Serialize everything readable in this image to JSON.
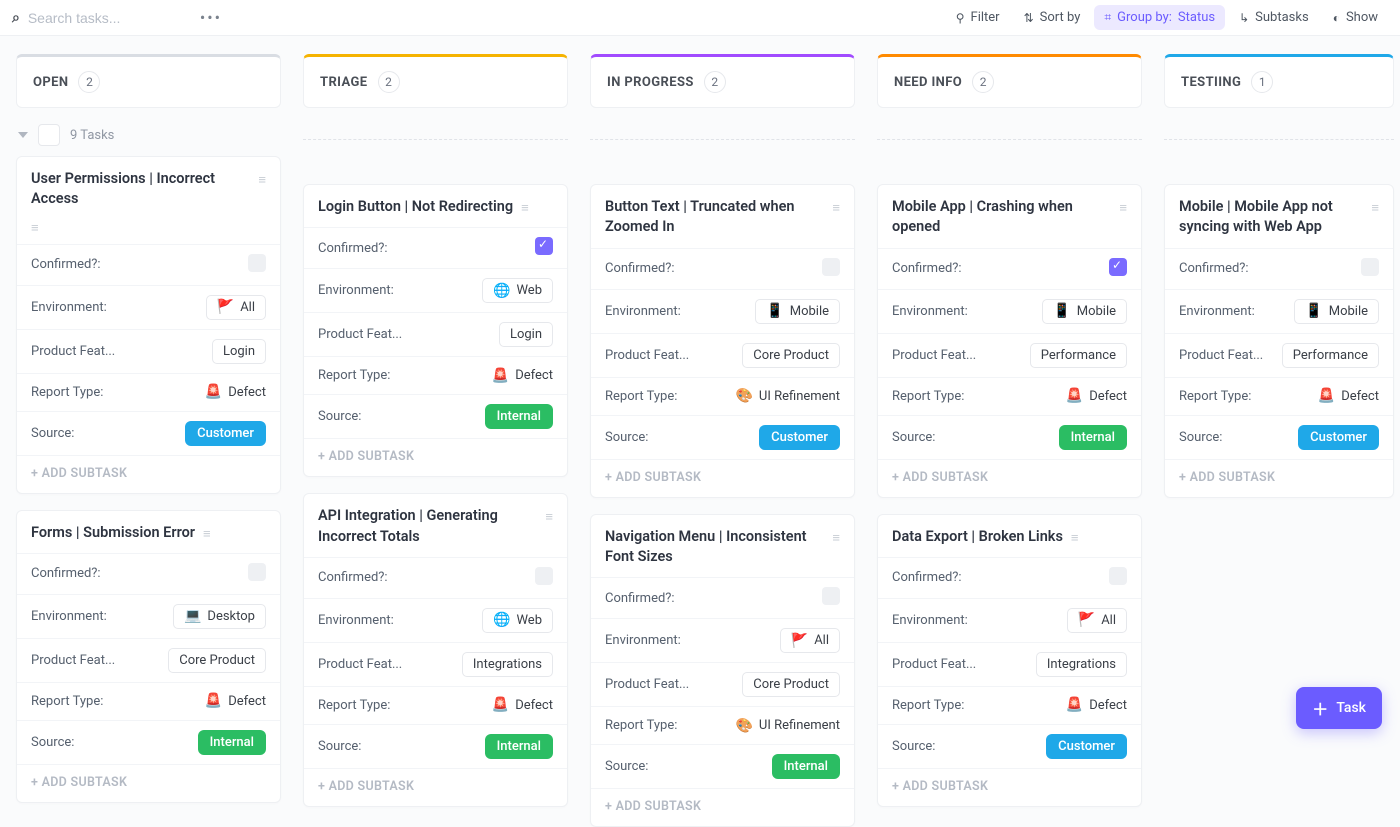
{
  "toolbar": {
    "search_placeholder": "Search tasks...",
    "filter": "Filter",
    "sortby": "Sort by",
    "groupby_label": "Group by:",
    "groupby_value": "Status",
    "subtasks": "Subtasks",
    "show": "Show"
  },
  "group": {
    "count_label": "9 Tasks"
  },
  "fab": {
    "label": "Task"
  },
  "labels": {
    "confirmed": "Confirmed?:",
    "environment": "Environment:",
    "product_feature": "Product Feat...",
    "report_type": "Report Type:",
    "source": "Source:",
    "add_subtask": "+ ADD SUBTASK"
  },
  "env": {
    "all": "All",
    "web": "Web",
    "desktop": "Desktop",
    "mobile": "Mobile"
  },
  "feat": {
    "login": "Login",
    "core": "Core Product",
    "integrations": "Integrations",
    "performance": "Performance"
  },
  "report": {
    "defect": "Defect",
    "ui": "UI Refinement"
  },
  "source": {
    "customer": "Customer",
    "internal": "Internal"
  },
  "colors": {
    "open": "#d9dde3",
    "triage": "#f5b301",
    "in_progress": "#a14bff",
    "need_info": "#ff8a00",
    "testing": "#1fa8e8",
    "accent": "#6b5cff"
  },
  "columns": [
    {
      "key": "open",
      "title": "OPEN",
      "count": 2,
      "cards": [
        {
          "title": "User Permissions | Incorrect Access",
          "desc_below": true,
          "confirmed": false,
          "environment": {
            "icon": "🚩",
            "text_key": "env.all",
            "boxed": true
          },
          "feature": {
            "text_key": "feat.login",
            "boxed": true
          },
          "report": {
            "icon": "🚨",
            "text_key": "report.defect"
          },
          "source": {
            "pill": "customer"
          }
        },
        {
          "title": "Forms | Submission Error",
          "confirmed": false,
          "environment": {
            "icon": "💻",
            "text_key": "env.desktop",
            "boxed": true
          },
          "feature": {
            "text_key": "feat.core",
            "boxed": true
          },
          "report": {
            "icon": "🚨",
            "text_key": "report.defect"
          },
          "source": {
            "pill": "internal"
          }
        }
      ]
    },
    {
      "key": "triage",
      "title": "TRIAGE",
      "count": 2,
      "cards": [
        {
          "title": "Login Button | Not Redirecting",
          "confirmed": true,
          "environment": {
            "icon": "🌐",
            "text_key": "env.web",
            "boxed": true
          },
          "feature": {
            "text_key": "feat.login",
            "boxed": true
          },
          "report": {
            "icon": "🚨",
            "text_key": "report.defect"
          },
          "source": {
            "pill": "internal"
          }
        },
        {
          "title": "API Integration | Generating Incorrect Totals",
          "confirmed": false,
          "environment": {
            "icon": "🌐",
            "text_key": "env.web",
            "boxed": true
          },
          "feature": {
            "text_key": "feat.integrations",
            "boxed": true
          },
          "report": {
            "icon": "🚨",
            "text_key": "report.defect"
          },
          "source": {
            "pill": "internal"
          }
        }
      ]
    },
    {
      "key": "in_progress",
      "title": "IN PROGRESS",
      "count": 2,
      "cards": [
        {
          "title": "Button Text | Truncated when Zoomed In",
          "confirmed": false,
          "environment": {
            "icon": "📱",
            "text_key": "env.mobile",
            "boxed": true
          },
          "feature": {
            "text_key": "feat.core",
            "boxed": true
          },
          "report": {
            "icon": "🎨",
            "text_key": "report.ui"
          },
          "source": {
            "pill": "customer"
          }
        },
        {
          "title": "Navigation Menu | Inconsistent Font Sizes",
          "confirmed": false,
          "environment": {
            "icon": "🚩",
            "text_key": "env.all",
            "boxed": true
          },
          "feature": {
            "text_key": "feat.core",
            "boxed": true
          },
          "report": {
            "icon": "🎨",
            "text_key": "report.ui"
          },
          "source": {
            "pill": "internal"
          }
        }
      ]
    },
    {
      "key": "need_info",
      "title": "NEED INFO",
      "count": 2,
      "cards": [
        {
          "title": "Mobile App | Crashing when opened",
          "confirmed": true,
          "environment": {
            "icon": "📱",
            "text_key": "env.mobile",
            "boxed": true
          },
          "feature": {
            "text_key": "feat.performance",
            "boxed": true
          },
          "report": {
            "icon": "🚨",
            "text_key": "report.defect"
          },
          "source": {
            "pill": "internal"
          }
        },
        {
          "title": "Data Export | Broken Links",
          "confirmed": false,
          "environment": {
            "icon": "🚩",
            "text_key": "env.all",
            "boxed": true
          },
          "feature": {
            "text_key": "feat.integrations",
            "boxed": true
          },
          "report": {
            "icon": "🚨",
            "text_key": "report.defect"
          },
          "source": {
            "pill": "customer"
          }
        }
      ]
    },
    {
      "key": "testing",
      "title": "TESTIING",
      "count": 1,
      "cards": [
        {
          "title": "Mobile | Mobile App not syncing with Web App",
          "confirmed": false,
          "environment": {
            "icon": "📱",
            "text_key": "env.mobile",
            "boxed": true
          },
          "feature": {
            "text_key": "feat.performance",
            "boxed": true
          },
          "report": {
            "icon": "🚨",
            "text_key": "report.defect"
          },
          "source": {
            "pill": "customer"
          }
        }
      ]
    }
  ]
}
